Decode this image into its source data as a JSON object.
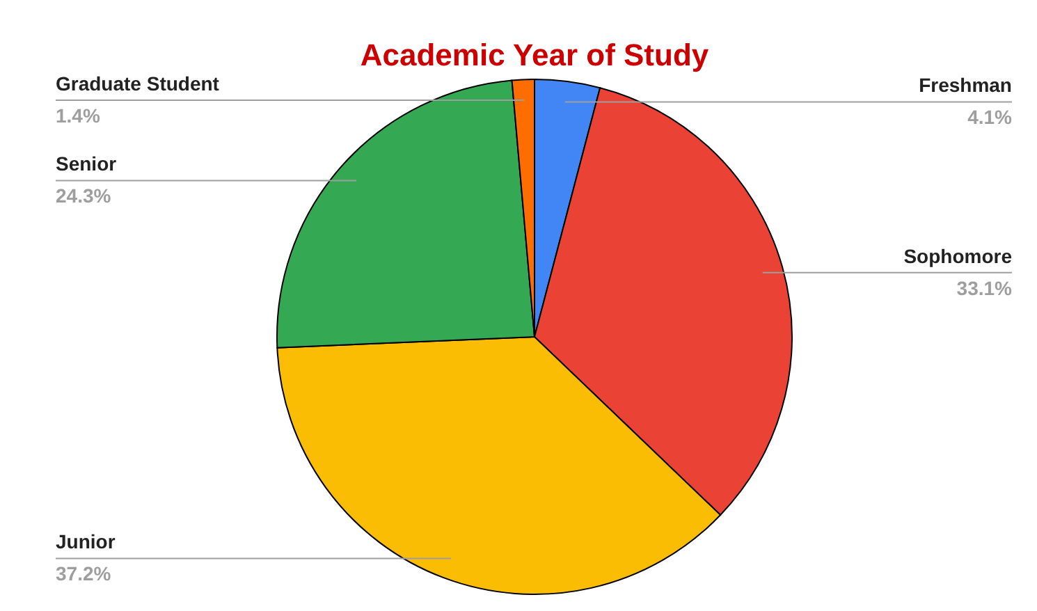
{
  "chart_data": {
    "type": "pie",
    "title": "Academic Year of Study",
    "categories": [
      "Freshman",
      "Sophomore",
      "Junior",
      "Senior",
      "Graduate Student"
    ],
    "values": [
      4.1,
      33.1,
      37.2,
      24.3,
      1.4
    ],
    "value_labels": [
      "4.1%",
      "33.1%",
      "37.2%",
      "24.3%",
      "1.4%"
    ],
    "colors": [
      "#4285f4",
      "#ea4335",
      "#fbbc04",
      "#34a853",
      "#ff6d01"
    ]
  }
}
